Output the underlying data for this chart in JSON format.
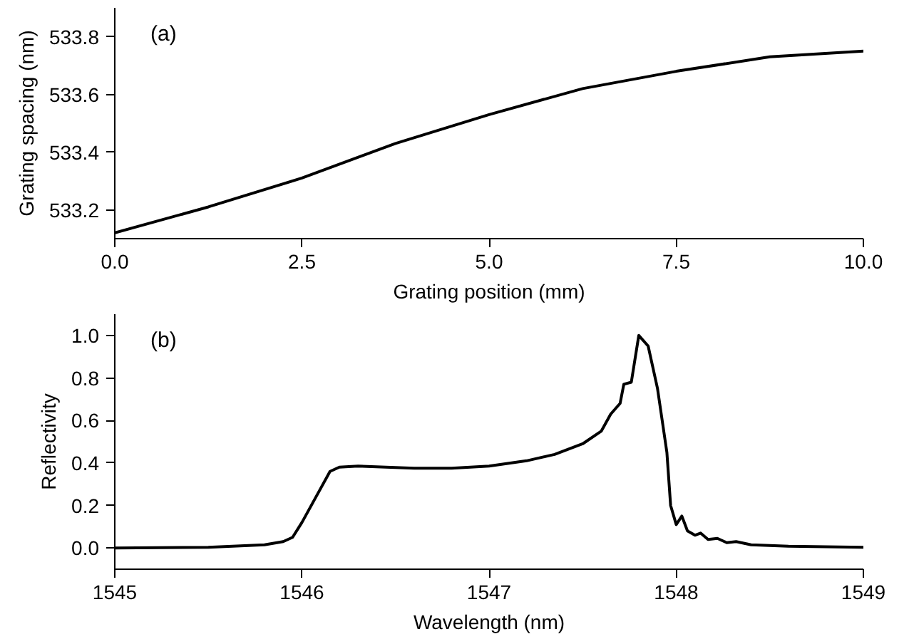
{
  "chart_data": [
    {
      "type": "line",
      "xlabel": "Grating position (mm)",
      "ylabel": "Grating spacing (nm)",
      "annotations": [
        "(a)"
      ],
      "x": [
        0,
        1.25,
        2.5,
        3.75,
        5,
        6.25,
        7.5,
        8.75,
        10
      ],
      "series": [
        {
          "color": "#000000",
          "values": [
            533.12,
            533.21,
            533.31,
            533.43,
            533.53,
            533.62,
            533.68,
            533.73,
            533.75
          ]
        }
      ],
      "xlim": [
        0,
        10
      ],
      "ylim": [
        533.1,
        533.9
      ],
      "xticks": [
        {
          "value": 0,
          "label": "0.0"
        },
        2.5,
        {
          "value": 5,
          "label": "5.0"
        },
        7.5,
        {
          "value": 10,
          "label": "10.0"
        }
      ],
      "yticks": [
        533.2,
        533.4,
        533.6,
        533.8
      ],
      "grid": false,
      "marker": "none",
      "line_style": "solid"
    },
    {
      "type": "line",
      "xlabel": "Wavelength (nm)",
      "ylabel": "Reflectivity",
      "annotations": [
        "(b)"
      ],
      "x": [
        1545,
        1545.5,
        1545.8,
        1545.9,
        1545.95,
        1546.0,
        1546.1,
        1546.15,
        1546.2,
        1546.3,
        1546.6,
        1546.8,
        1547.0,
        1547.2,
        1547.35,
        1547.5,
        1547.6,
        1547.65,
        1547.7,
        1547.72,
        1547.76,
        1547.8,
        1547.85,
        1547.9,
        1547.95,
        1547.97,
        1548.0,
        1548.03,
        1548.06,
        1548.1,
        1548.13,
        1548.17,
        1548.22,
        1548.27,
        1548.32,
        1548.4,
        1548.6,
        1549
      ],
      "series": [
        {
          "color": "#000000",
          "values": [
            0,
            0.003,
            0.015,
            0.03,
            0.05,
            0.12,
            0.28,
            0.36,
            0.38,
            0.385,
            0.375,
            0.375,
            0.385,
            0.41,
            0.44,
            0.49,
            0.55,
            0.63,
            0.68,
            0.77,
            0.78,
            1.0,
            0.95,
            0.75,
            0.45,
            0.2,
            0.11,
            0.15,
            0.08,
            0.06,
            0.07,
            0.04,
            0.045,
            0.025,
            0.03,
            0.015,
            0.008,
            0.003
          ]
        }
      ],
      "xlim": [
        1545,
        1549
      ],
      "ylim": [
        -0.1,
        1.1
      ],
      "xticks": [
        1545,
        1546,
        1547,
        1548,
        1549
      ],
      "yticks": [
        {
          "value": 0,
          "label": "0.0"
        },
        0.2,
        0.4,
        0.6,
        0.8,
        {
          "value": 1,
          "label": "1.0"
        }
      ],
      "grid": false,
      "marker": "none",
      "line_style": "solid"
    }
  ]
}
